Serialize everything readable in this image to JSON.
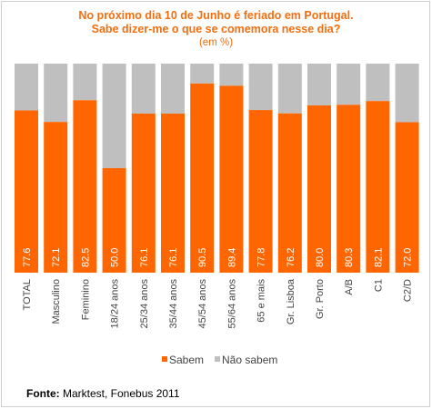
{
  "title_line1": "No próximo dia 10 de Junho é feriado em Portugal.",
  "title_line2": "Sabe dizer-me o que se comemora nesse dia?",
  "title_unit": "(em %)",
  "source_label": "Fonte:",
  "source_text": " Marktest, Fonebus 2011",
  "colors": {
    "sabem": "#ff6600",
    "nao_sabem": "#bfbfbf",
    "title": "#f26e10"
  },
  "chart_data": {
    "type": "bar",
    "stacked": "percent",
    "categories": [
      "TOTAL",
      "Masculino",
      "Feminino",
      "18/24 anos",
      "25/34 anos",
      "35/44 anos",
      "45/54 anos",
      "55/64 anos",
      "65 e mais",
      "Gr. Lisboa",
      "Gr. Porto",
      "A/B",
      "C1",
      "C2/D"
    ],
    "series": [
      {
        "name": "Sabem",
        "values": [
          77.6,
          72.1,
          82.5,
          50.0,
          76.1,
          76.1,
          90.5,
          89.4,
          77.8,
          76.2,
          80.0,
          80.3,
          82.1,
          72.0
        ],
        "color": "#ff6600"
      },
      {
        "name": "Não sabem",
        "values": [
          22.4,
          27.9,
          17.5,
          50.0,
          23.9,
          23.9,
          9.5,
          10.6,
          22.2,
          23.8,
          20.0,
          19.7,
          17.9,
          28.0
        ],
        "color": "#bfbfbf"
      }
    ],
    "data_labels": [
      "77.6",
      "72.1",
      "82.5",
      "50.0",
      "76.1",
      "76.1",
      "90.5",
      "89.4",
      "77.8",
      "76.2",
      "80.0",
      "80.3",
      "82.1",
      "72.0"
    ],
    "ylim": [
      0,
      100
    ],
    "grid": false,
    "legend_position": "bottom"
  }
}
